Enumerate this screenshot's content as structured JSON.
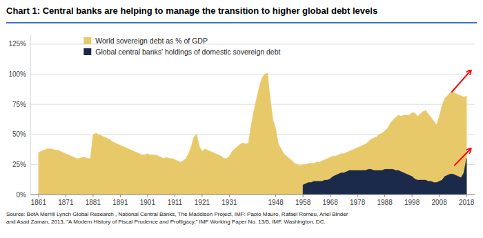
{
  "chart_data": {
    "type": "area",
    "title": "Chart 1:  Central banks are helping to manage the transition to higher global debt levels",
    "source": "Source: BofA Merrill Lynch Global Research , National Central Banks, The Maddison Project, IMF: Paolo Mauro, Rafael Romeu, Ariel Binder\nand Asad Zaman, 2013, \"A Modern History of Fiscal Prudence and Profligacy,\" IMF Working Paper No. 13/5, IMF, Washington, DC.",
    "xlim": [
      1858,
      2021
    ],
    "xticks": [
      1861,
      1871,
      1881,
      1891,
      1901,
      1911,
      1921,
      1931,
      1948,
      1958,
      1968,
      1978,
      1988,
      1998,
      2008,
      2018
    ],
    "ylim": [
      0,
      133
    ],
    "yticks": [
      {
        "value": 0,
        "label": "0%"
      },
      {
        "value": 25,
        "label": "25%"
      },
      {
        "value": 50,
        "label": "50%"
      },
      {
        "value": 75,
        "label": "75%"
      },
      {
        "value": 100,
        "label": "100%"
      },
      {
        "value": 125,
        "label": "125%"
      }
    ],
    "grid": true,
    "legend": "upper left",
    "series": [
      {
        "name": "World sovereign debt as % of GDP",
        "color": "#E8C96A",
        "x": [
          1861,
          1862,
          1863,
          1864,
          1865,
          1866,
          1867,
          1868,
          1869,
          1870,
          1871,
          1872,
          1873,
          1874,
          1875,
          1876,
          1877,
          1878,
          1879,
          1880,
          1881,
          1882,
          1883,
          1884,
          1885,
          1886,
          1887,
          1888,
          1889,
          1890,
          1891,
          1892,
          1893,
          1894,
          1895,
          1896,
          1897,
          1898,
          1899,
          1900,
          1901,
          1902,
          1903,
          1904,
          1905,
          1906,
          1907,
          1908,
          1909,
          1910,
          1911,
          1912,
          1913,
          1914,
          1915,
          1916,
          1917,
          1918,
          1919,
          1920,
          1921,
          1922,
          1923,
          1924,
          1925,
          1926,
          1927,
          1928,
          1929,
          1930,
          1931,
          1932,
          1933,
          1934,
          1935,
          1936,
          1937,
          1938,
          1939,
          1940,
          1941,
          1942,
          1943,
          1944,
          1945,
          1946,
          1947,
          1948,
          1949,
          1950,
          1951,
          1952,
          1953,
          1954,
          1955,
          1956,
          1957,
          1958,
          1959,
          1960,
          1961,
          1962,
          1963,
          1964,
          1965,
          1966,
          1967,
          1968,
          1969,
          1970,
          1971,
          1972,
          1973,
          1974,
          1975,
          1976,
          1977,
          1978,
          1979,
          1980,
          1981,
          1982,
          1983,
          1984,
          1985,
          1986,
          1987,
          1988,
          1989,
          1990,
          1991,
          1992,
          1993,
          1994,
          1995,
          1996,
          1997,
          1998,
          1999,
          2000,
          2001,
          2002,
          2003,
          2004,
          2005,
          2006,
          2007,
          2008,
          2009,
          2010,
          2011,
          2012,
          2013,
          2014,
          2015,
          2016,
          2017,
          2018
        ],
        "values": [
          35,
          36,
          37,
          38,
          38,
          38,
          37,
          37,
          36,
          35,
          34,
          33,
          32,
          31,
          30,
          30,
          31,
          31,
          30,
          30,
          50,
          51,
          50,
          49,
          48,
          47,
          46,
          44,
          43,
          42,
          41,
          40,
          39,
          38,
          37,
          36,
          35,
          34,
          33,
          33,
          34,
          33,
          33,
          33,
          32,
          31,
          30,
          31,
          30,
          30,
          29,
          28,
          27,
          28,
          30,
          34,
          40,
          48,
          50,
          40,
          36,
          38,
          37,
          36,
          35,
          34,
          33,
          32,
          30,
          30,
          32,
          36,
          38,
          40,
          42,
          43,
          42,
          43,
          58,
          70,
          80,
          90,
          97,
          100,
          101,
          80,
          62,
          55,
          42,
          38,
          34,
          32,
          30,
          28,
          26,
          25,
          24,
          25,
          25,
          26,
          26,
          26,
          27,
          27,
          28,
          29,
          30,
          31,
          32,
          32,
          33,
          34,
          34,
          35,
          36,
          37,
          38,
          39,
          40,
          41,
          42,
          44,
          46,
          47,
          48,
          50,
          51,
          53,
          55,
          59,
          62,
          64,
          66,
          65,
          66,
          66,
          66,
          68,
          68,
          65,
          67,
          69,
          70,
          67,
          64,
          61,
          58,
          65,
          74,
          80,
          82,
          85,
          85,
          84,
          83,
          82,
          81,
          82
        ]
      },
      {
        "name": "Global central banks' holdings of domestic sovereign debt",
        "color": "#1B2A4A",
        "x": [
          1958,
          1959,
          1960,
          1961,
          1962,
          1963,
          1964,
          1965,
          1966,
          1967,
          1968,
          1969,
          1970,
          1971,
          1972,
          1973,
          1974,
          1975,
          1976,
          1977,
          1978,
          1979,
          1980,
          1981,
          1982,
          1983,
          1984,
          1985,
          1986,
          1987,
          1988,
          1989,
          1990,
          1991,
          1992,
          1993,
          1994,
          1995,
          1996,
          1997,
          1998,
          1999,
          2000,
          2001,
          2002,
          2003,
          2004,
          2005,
          2006,
          2007,
          2008,
          2009,
          2010,
          2011,
          2012,
          2013,
          2014,
          2015,
          2016,
          2017,
          2018
        ],
        "values": [
          8,
          9,
          10,
          10,
          11,
          11,
          11,
          11,
          12,
          12,
          13,
          15,
          16,
          17,
          18,
          18,
          19,
          20,
          20,
          20,
          20,
          20,
          20,
          20,
          21,
          21,
          20,
          20,
          20,
          20,
          21,
          21,
          21,
          21,
          20,
          20,
          19,
          18,
          17,
          16,
          15,
          13,
          12,
          12,
          12,
          12,
          11,
          11,
          10,
          10,
          11,
          12,
          15,
          16,
          17,
          17,
          16,
          15,
          14,
          18,
          30
        ]
      }
    ],
    "arrows": [
      {
        "from": [
          2012.5,
          85
        ],
        "to": [
          2019.5,
          103
        ],
        "color": "red"
      },
      {
        "from": [
          2013.5,
          24
        ],
        "to": [
          2019.5,
          38
        ],
        "color": "red"
      }
    ]
  }
}
